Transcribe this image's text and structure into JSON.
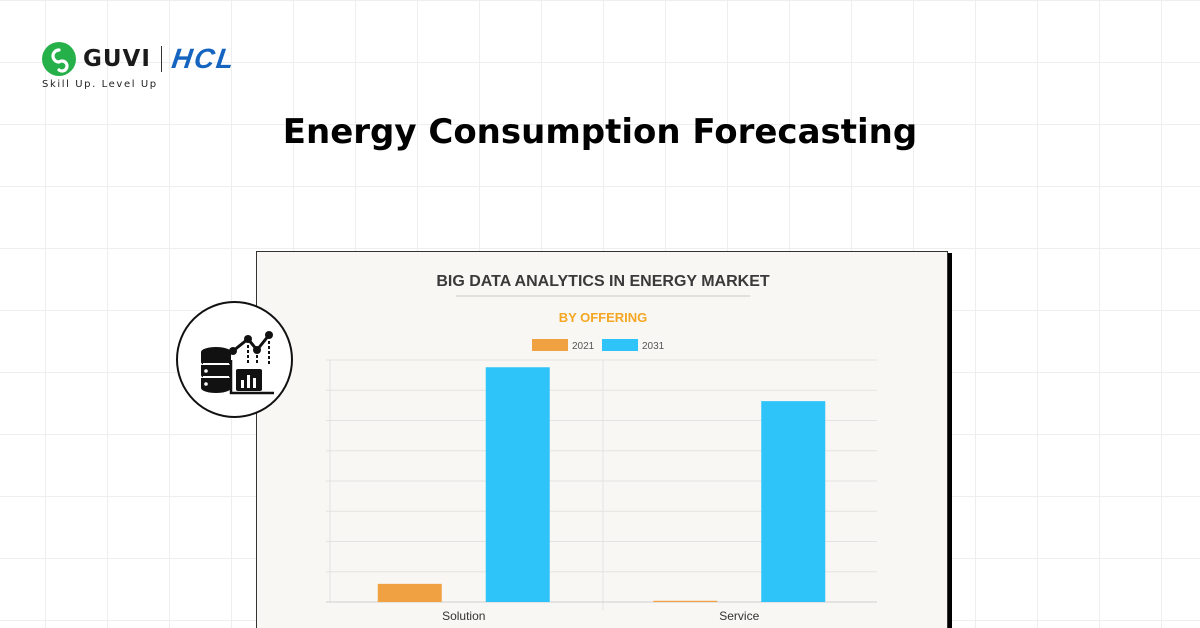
{
  "brand": {
    "guvi_name": "GUVI",
    "hcl_name": "HCL",
    "tagline": "Skill Up. Level Up"
  },
  "page": {
    "title": "Energy Consumption Forecasting"
  },
  "badge": {
    "icon": "database-analytics-icon"
  },
  "colors": {
    "series_2021": "#f0a142",
    "series_2031": "#2ec4fa",
    "subtitle": "#f5a623"
  },
  "chart_data": {
    "type": "bar",
    "title": "BIG DATA ANALYTICS IN ENERGY MARKET",
    "subtitle": "BY OFFERING",
    "categories": [
      "Solution",
      "Service"
    ],
    "series": [
      {
        "name": "2021",
        "values": [
          7.5,
          0.5
        ]
      },
      {
        "name": "2031",
        "values": [
          97,
          83
        ]
      }
    ],
    "ylim": [
      0,
      100
    ],
    "legend": "top-center",
    "grid": true
  }
}
